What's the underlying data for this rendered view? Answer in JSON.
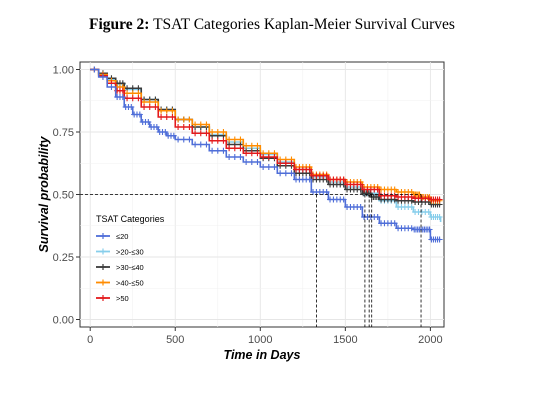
{
  "figure": {
    "label": "Figure 2:",
    "title": "TSAT Categories Kaplan-Meier Survival Curves"
  },
  "chart_data": {
    "type": "line",
    "xlabel": "Time in Days",
    "ylabel": "Survival probability",
    "xlim": [
      -60,
      2080
    ],
    "ylim": [
      -0.03,
      1.03
    ],
    "x_ticks": [
      "0",
      "500",
      "1000",
      "1500",
      "2000"
    ],
    "y_ticks": [
      "0.00",
      "0.25",
      "0.50",
      "0.75",
      "1.00"
    ],
    "grid": true,
    "legend_title": "TSAT Categories",
    "legend_position": "inside-bottom-left",
    "median_line_y": 0.5,
    "median_times": [
      1330,
      1615,
      1640,
      1655,
      1945
    ],
    "series": [
      {
        "name": "≤20",
        "color": "#4f6ed8",
        "points": [
          [
            0,
            1.0
          ],
          [
            50,
            0.97
          ],
          [
            100,
            0.93
          ],
          [
            150,
            0.89
          ],
          [
            200,
            0.85
          ],
          [
            250,
            0.82
          ],
          [
            300,
            0.79
          ],
          [
            350,
            0.77
          ],
          [
            400,
            0.75
          ],
          [
            450,
            0.735
          ],
          [
            500,
            0.72
          ],
          [
            600,
            0.7
          ],
          [
            700,
            0.675
          ],
          [
            800,
            0.65
          ],
          [
            900,
            0.63
          ],
          [
            1000,
            0.61
          ],
          [
            1100,
            0.585
          ],
          [
            1200,
            0.56
          ],
          [
            1300,
            0.51
          ],
          [
            1400,
            0.48
          ],
          [
            1500,
            0.45
          ],
          [
            1600,
            0.41
          ],
          [
            1700,
            0.385
          ],
          [
            1800,
            0.365
          ],
          [
            1900,
            0.36
          ],
          [
            1950,
            0.36
          ],
          [
            2000,
            0.32
          ],
          [
            2060,
            0.32
          ]
        ]
      },
      {
        "name": ">20-≤30",
        "color": "#87ceeb",
        "points": [
          [
            0,
            1.0
          ],
          [
            50,
            0.98
          ],
          [
            100,
            0.96
          ],
          [
            150,
            0.94
          ],
          [
            200,
            0.92
          ],
          [
            300,
            0.88
          ],
          [
            400,
            0.84
          ],
          [
            500,
            0.8
          ],
          [
            600,
            0.77
          ],
          [
            700,
            0.74
          ],
          [
            800,
            0.71
          ],
          [
            900,
            0.685
          ],
          [
            1000,
            0.66
          ],
          [
            1100,
            0.63
          ],
          [
            1200,
            0.6
          ],
          [
            1300,
            0.57
          ],
          [
            1400,
            0.55
          ],
          [
            1500,
            0.53
          ],
          [
            1600,
            0.505
          ],
          [
            1700,
            0.475
          ],
          [
            1800,
            0.45
          ],
          [
            1900,
            0.43
          ],
          [
            2000,
            0.41
          ],
          [
            2060,
            0.39
          ]
        ]
      },
      {
        "name": ">30-≤40",
        "color": "#3a3a3a",
        "points": [
          [
            0,
            1.0
          ],
          [
            50,
            0.985
          ],
          [
            100,
            0.965
          ],
          [
            150,
            0.945
          ],
          [
            200,
            0.925
          ],
          [
            300,
            0.88
          ],
          [
            400,
            0.84
          ],
          [
            500,
            0.8
          ],
          [
            600,
            0.77
          ],
          [
            700,
            0.735
          ],
          [
            800,
            0.7
          ],
          [
            900,
            0.675
          ],
          [
            1000,
            0.645
          ],
          [
            1100,
            0.615
          ],
          [
            1200,
            0.585
          ],
          [
            1300,
            0.56
          ],
          [
            1400,
            0.54
          ],
          [
            1500,
            0.52
          ],
          [
            1600,
            0.505
          ],
          [
            1650,
            0.49
          ],
          [
            1700,
            0.48
          ],
          [
            1800,
            0.475
          ],
          [
            1900,
            0.47
          ],
          [
            2000,
            0.46
          ],
          [
            2060,
            0.46
          ]
        ]
      },
      {
        "name": ">40-≤50",
        "color": "#ff8c00",
        "points": [
          [
            0,
            1.0
          ],
          [
            50,
            0.98
          ],
          [
            100,
            0.955
          ],
          [
            150,
            0.93
          ],
          [
            200,
            0.905
          ],
          [
            300,
            0.87
          ],
          [
            400,
            0.835
          ],
          [
            500,
            0.8
          ],
          [
            600,
            0.78
          ],
          [
            700,
            0.75
          ],
          [
            800,
            0.72
          ],
          [
            900,
            0.695
          ],
          [
            1000,
            0.665
          ],
          [
            1100,
            0.64
          ],
          [
            1200,
            0.61
          ],
          [
            1300,
            0.58
          ],
          [
            1400,
            0.56
          ],
          [
            1500,
            0.55
          ],
          [
            1600,
            0.53
          ],
          [
            1700,
            0.52
          ],
          [
            1800,
            0.51
          ],
          [
            1900,
            0.5
          ],
          [
            1940,
            0.49
          ],
          [
            2000,
            0.475
          ],
          [
            2060,
            0.475
          ]
        ]
      },
      {
        "name": ">50",
        "color": "#e31a1c",
        "points": [
          [
            0,
            1.0
          ],
          [
            50,
            0.975
          ],
          [
            100,
            0.945
          ],
          [
            150,
            0.915
          ],
          [
            200,
            0.885
          ],
          [
            300,
            0.85
          ],
          [
            400,
            0.81
          ],
          [
            500,
            0.77
          ],
          [
            600,
            0.745
          ],
          [
            700,
            0.715
          ],
          [
            800,
            0.685
          ],
          [
            900,
            0.665
          ],
          [
            1000,
            0.65
          ],
          [
            1100,
            0.625
          ],
          [
            1200,
            0.6
          ],
          [
            1300,
            0.575
          ],
          [
            1400,
            0.56
          ],
          [
            1500,
            0.54
          ],
          [
            1600,
            0.52
          ],
          [
            1700,
            0.495
          ],
          [
            1800,
            0.49
          ],
          [
            1900,
            0.485
          ],
          [
            2000,
            0.48
          ],
          [
            2060,
            0.48
          ]
        ]
      }
    ]
  }
}
